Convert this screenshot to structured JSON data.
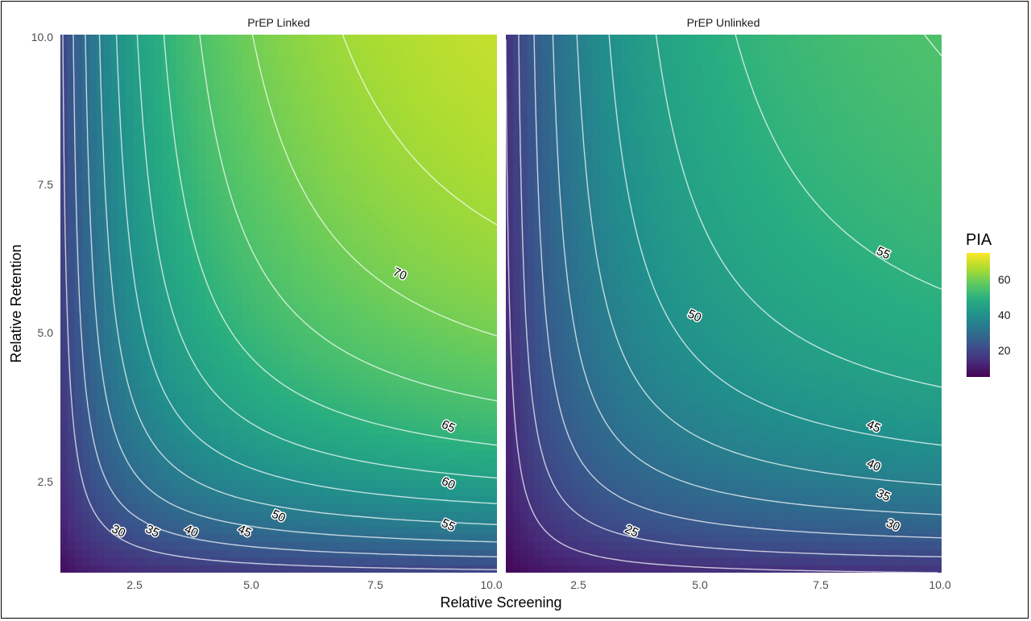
{
  "chart_data": {
    "type": "heatmap",
    "subtype": "contour-faceted",
    "xlabel": "Relative Screening",
    "ylabel": "Relative Retention",
    "xlim": [
      1,
      10
    ],
    "ylim": [
      1,
      10
    ],
    "x_ticks": [
      "2.5",
      "5.0",
      "7.5",
      "10.0"
    ],
    "y_ticks": [
      "2.5",
      "5.0",
      "7.5",
      "10.0"
    ],
    "colorscale": "viridis",
    "legend": {
      "title": "PIA",
      "position": "right",
      "range": [
        5,
        75
      ],
      "ticks": [
        "20",
        "40",
        "60"
      ],
      "tick_values": [
        20,
        40,
        60
      ]
    },
    "panels": [
      {
        "title": "PrEP Linked",
        "z_max": 75,
        "contour_levels": [
          20,
          25,
          30,
          35,
          40,
          45,
          50,
          55,
          60,
          65,
          70
        ],
        "contour_labels": [
          {
            "text": "30",
            "x": 2.2,
            "y": 1.7
          },
          {
            "text": "35",
            "x": 2.9,
            "y": 1.7
          },
          {
            "text": "40",
            "x": 3.7,
            "y": 1.7
          },
          {
            "text": "45",
            "x": 4.8,
            "y": 1.7
          },
          {
            "text": "50",
            "x": 5.5,
            "y": 1.95
          },
          {
            "text": "55",
            "x": 9.0,
            "y": 1.8
          },
          {
            "text": "60",
            "x": 9.0,
            "y": 2.5
          },
          {
            "text": "65",
            "x": 9.0,
            "y": 3.45
          },
          {
            "text": "70",
            "x": 8.0,
            "y": 6.0
          }
        ]
      },
      {
        "title": "PrEP Unlinked",
        "z_max": 60,
        "contour_levels": [
          15,
          20,
          25,
          30,
          35,
          40,
          45,
          50,
          55
        ],
        "contour_labels": [
          {
            "text": "25",
            "x": 3.6,
            "y": 1.7
          },
          {
            "text": "30",
            "x": 9.0,
            "y": 1.8
          },
          {
            "text": "35",
            "x": 8.8,
            "y": 2.3
          },
          {
            "text": "40",
            "x": 8.6,
            "y": 2.8
          },
          {
            "text": "45",
            "x": 8.6,
            "y": 3.45
          },
          {
            "text": "50",
            "x": 4.9,
            "y": 5.3
          },
          {
            "text": "55",
            "x": 8.8,
            "y": 6.35
          }
        ]
      }
    ]
  }
}
